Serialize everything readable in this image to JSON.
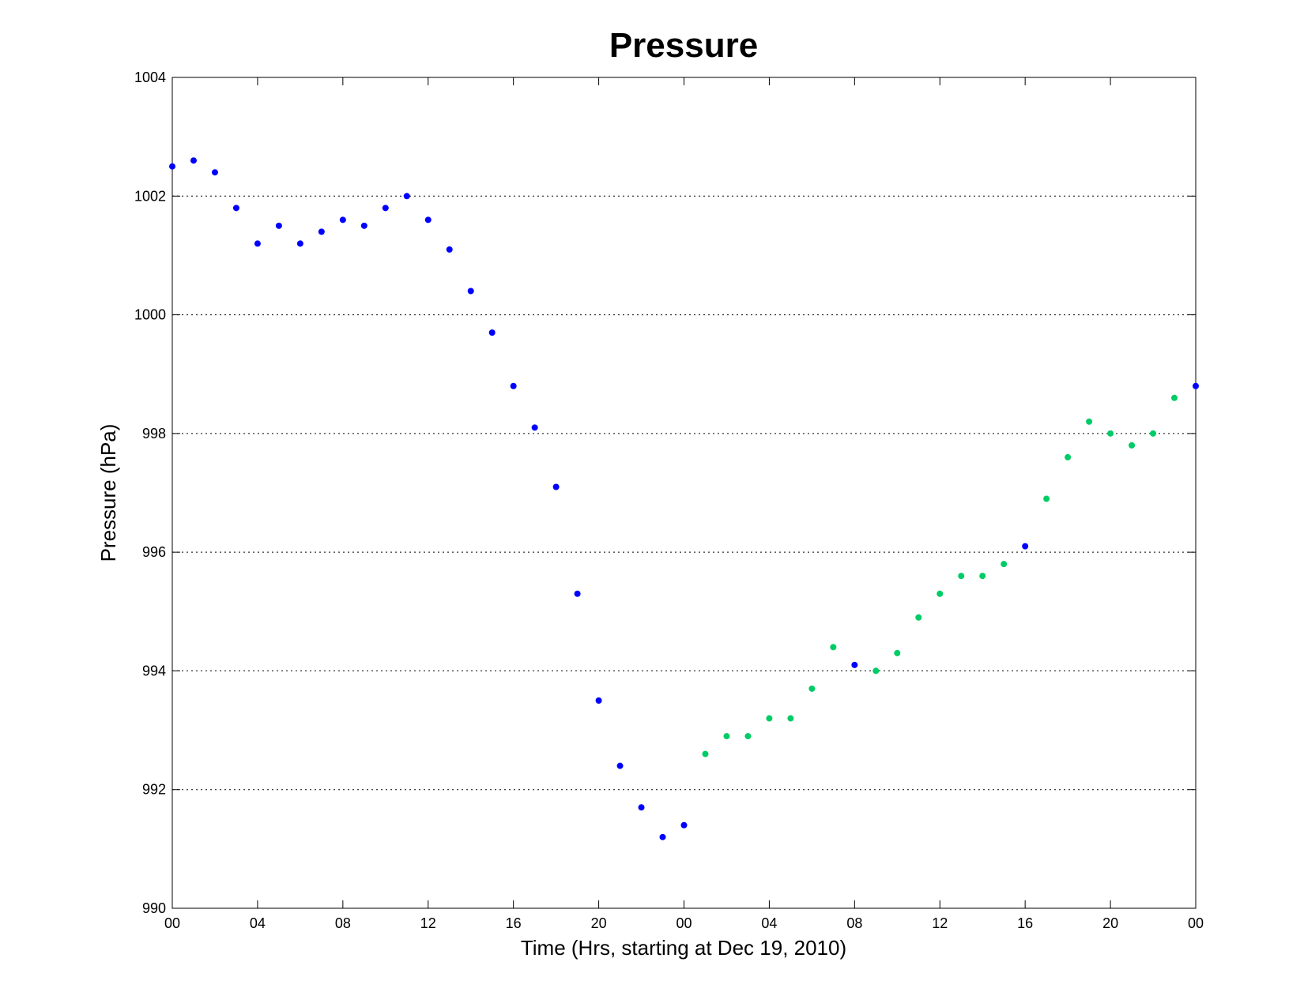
{
  "chart_data": {
    "type": "scatter",
    "title": "Pressure",
    "xlabel": "Time (Hrs, starting at Dec 19, 2010)",
    "ylabel": "Pressure (hPa)",
    "ylim": [
      990,
      1004
    ],
    "xlim": [
      0,
      48
    ],
    "y_ticks": [
      990,
      992,
      994,
      996,
      998,
      1000,
      1002,
      1004
    ],
    "x_ticks": [
      0,
      4,
      8,
      12,
      16,
      20,
      24,
      28,
      32,
      36,
      40,
      44,
      48
    ],
    "x_tick_labels": [
      "00",
      "04",
      "08",
      "12",
      "16",
      "20",
      "00",
      "04",
      "08",
      "12",
      "16",
      "20",
      "00"
    ],
    "grid": "horizontal dotted",
    "series": [
      {
        "color": "#0000ff",
        "x": [
          0,
          1,
          2,
          3,
          4,
          5,
          6,
          7,
          8,
          9,
          10,
          11,
          12,
          13,
          14,
          15,
          16,
          17,
          18,
          19,
          20,
          21,
          22,
          23,
          24,
          32,
          40,
          48
        ],
        "y": [
          1002.5,
          1002.6,
          1002.4,
          1001.8,
          1001.2,
          1001.5,
          1001.2,
          1001.4,
          1001.6,
          1001.5,
          1001.8,
          1002.0,
          1001.6,
          1001.1,
          1000.4,
          999.7,
          998.8,
          998.1,
          997.1,
          995.3,
          993.5,
          992.4,
          991.7,
          991.2,
          991.4,
          994.1,
          996.1,
          998.8
        ]
      },
      {
        "color": "#00cc66",
        "x": [
          25,
          26,
          27,
          28,
          29,
          30,
          31,
          33,
          34,
          35,
          36,
          37,
          38,
          39,
          41,
          42,
          43,
          44,
          45,
          46,
          47
        ],
        "y": [
          992.6,
          992.9,
          992.9,
          993.2,
          993.2,
          993.7,
          994.4,
          994.0,
          994.3,
          994.9,
          995.3,
          995.6,
          995.6,
          995.8,
          996.9,
          997.6,
          998.2,
          998.0,
          997.8,
          998.0,
          998.6
        ]
      }
    ]
  }
}
